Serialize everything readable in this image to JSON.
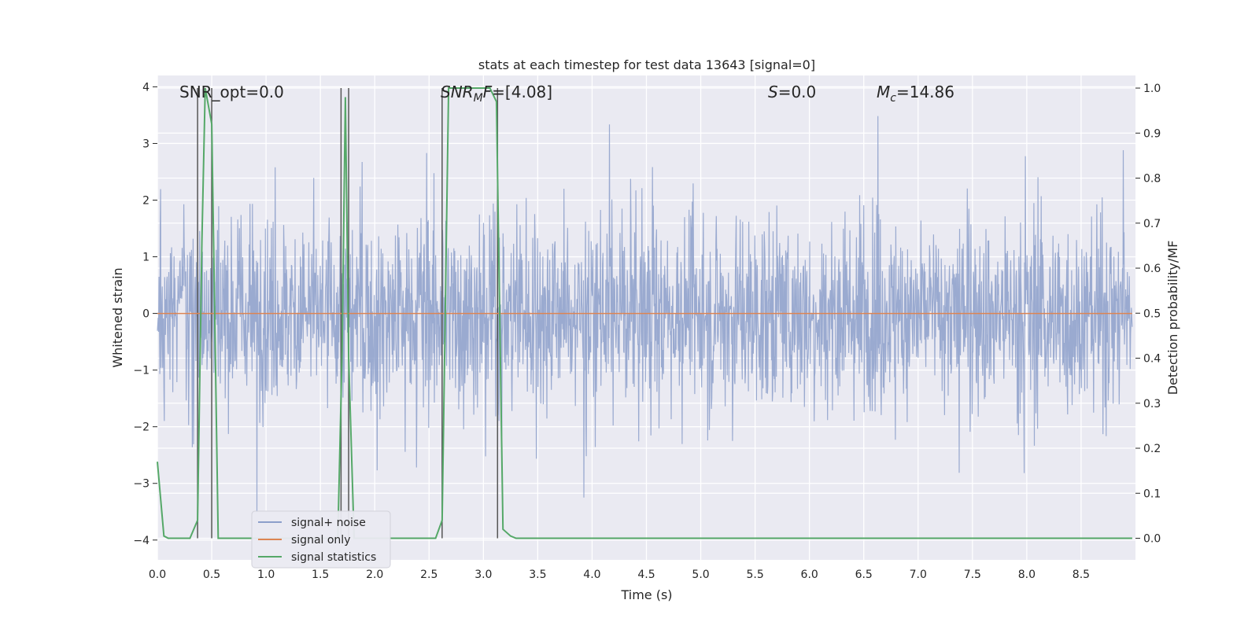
{
  "chart_data": {
    "type": "line",
    "title": "stats at each timestep for test data 13643 [signal=0]",
    "xlabel": "Time (s)",
    "ylabel_left": "Whitened strain",
    "ylabel_right": "Detection probability/MF",
    "xlim": [
      0.0,
      9.0
    ],
    "ylim_left": [
      -4.35,
      4.2
    ],
    "ylim_right": [
      -0.048,
      1.028
    ],
    "grid": true,
    "legend_position": "lower-left",
    "x_ticks": [
      "0.0",
      "0.5",
      "1.0",
      "1.5",
      "2.0",
      "2.5",
      "3.0",
      "3.5",
      "4.0",
      "4.5",
      "5.0",
      "5.5",
      "6.0",
      "6.5",
      "7.0",
      "7.5",
      "8.0",
      "8.5"
    ],
    "y_ticks_left": [
      "−4",
      "−3",
      "−2",
      "−1",
      "0",
      "1",
      "2",
      "3",
      "4"
    ],
    "y_ticks_right": [
      "0.0",
      "0.1",
      "0.2",
      "0.3",
      "0.4",
      "0.5",
      "0.6",
      "0.7",
      "0.8",
      "0.9",
      "1.0"
    ],
    "annotations": {
      "snr_opt": "SNR_opt=0.0",
      "snr_mf_sym": "SNR",
      "snr_mf_sub": "M",
      "snr_mf_sym2": "F",
      "snr_mf_val": "=[4.08]",
      "s_sym": "S",
      "s_val": "=0.0",
      "mc_sym": "M",
      "mc_sub": "c",
      "mc_val": "=14.86"
    },
    "series": [
      {
        "name": "signal+ noise",
        "color": "#8c9fca",
        "description_values": "noise band roughly within -1.8 to 1.8 with spikes up to about ±3.8"
      },
      {
        "name": "signal only",
        "color": "#dd8452",
        "x": [
          0.0,
          8.97
        ],
        "y": [
          0.0,
          0.0
        ]
      },
      {
        "name": "signal statistics",
        "color": "#55a868",
        "x": [
          0.0,
          0.06,
          0.1,
          0.3,
          0.37,
          0.41,
          0.44,
          0.5,
          0.56,
          1.5,
          1.66,
          1.7,
          1.73,
          1.76,
          1.81,
          2.56,
          2.62,
          2.68,
          3.06,
          3.12,
          3.18,
          3.25,
          3.3,
          8.97
        ],
        "y": [
          0.17,
          0.005,
          0.0,
          0.0,
          0.04,
          0.66,
          1.0,
          0.92,
          0.0,
          0.0,
          0.0,
          0.42,
          0.98,
          0.4,
          0.0,
          0.0,
          0.04,
          1.0,
          1.0,
          0.97,
          0.02,
          0.005,
          0.0,
          0.0
        ]
      }
    ],
    "vertical_markers_x": [
      0.37,
      0.5,
      1.69,
      1.76,
      2.62,
      3.13
    ]
  }
}
